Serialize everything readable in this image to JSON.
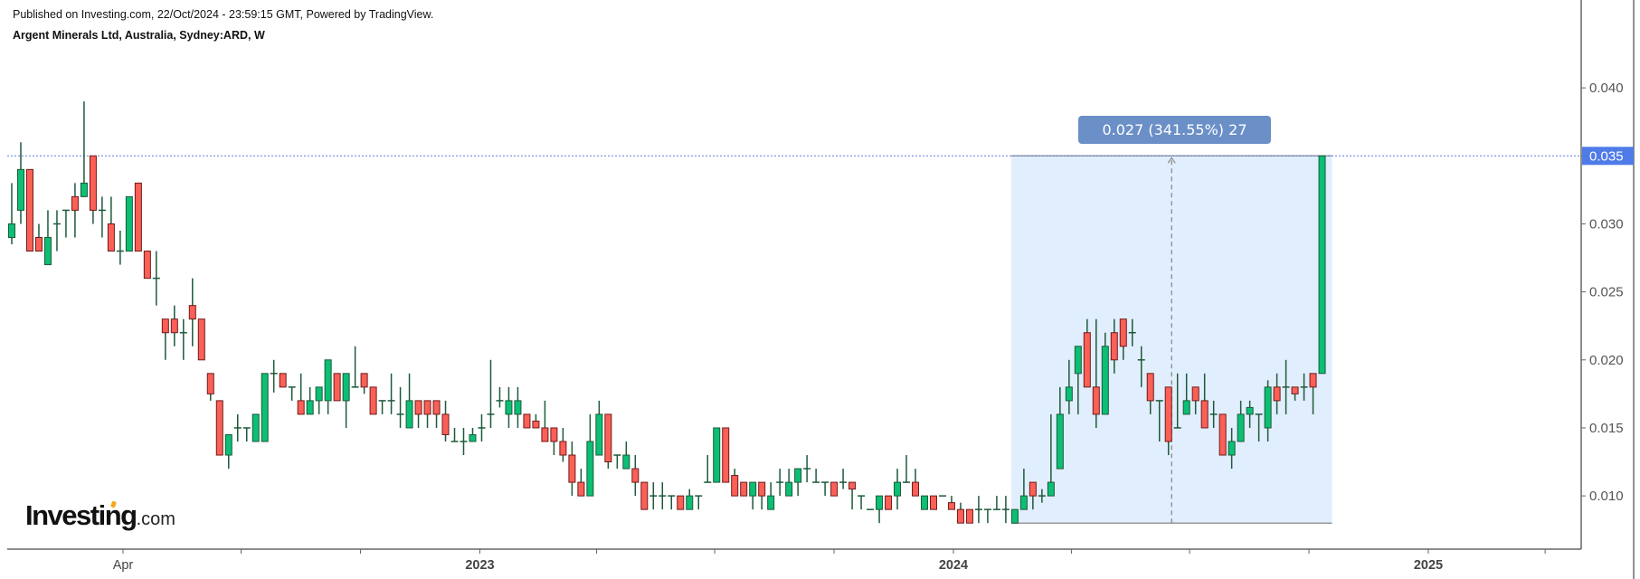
{
  "header": {
    "published": "Published on Investing.com, 22/Oct/2024 - 23:59:15 GMT, Powered by TradingView.",
    "title": "Argent Minerals Ltd, Australia, Sydney:ARD, W"
  },
  "logo": {
    "text": "Investing",
    "suffix": ".com"
  },
  "colors": {
    "up": "#0bbf74",
    "down": "#fb6057",
    "wick": "#1d5a3a",
    "measure_bg": "#e1eefd",
    "measure_label": "#6b8fc7",
    "price_label": "#4f7be8",
    "price_line": "#5a7de0"
  },
  "measure": {
    "label": "0.027 (341.55%) 27",
    "from_price": 0.008,
    "to_price": 0.035,
    "from_date": "2024-02-26",
    "to_date": "2024-10-21"
  },
  "chart_data": {
    "type": "candlestick",
    "interval": "W",
    "ylim": [
      0.006,
      0.043
    ],
    "y_ticks": [
      "0.010",
      "0.015",
      "0.020",
      "0.025",
      "0.030",
      "0.035",
      "0.040"
    ],
    "last_price": "0.035",
    "x_ticks": [
      {
        "date": "2022-04-01",
        "label": "Apr"
      },
      {
        "date": "2022-07-01",
        "label": ""
      },
      {
        "date": "2022-10-01",
        "label": ""
      },
      {
        "date": "2023-01-01",
        "label": "2023"
      },
      {
        "date": "2023-04-01",
        "label": ""
      },
      {
        "date": "2023-07-01",
        "label": ""
      },
      {
        "date": "2023-10-01",
        "label": ""
      },
      {
        "date": "2024-01-01",
        "label": "2024"
      },
      {
        "date": "2024-04-01",
        "label": ""
      },
      {
        "date": "2024-07-01",
        "label": ""
      },
      {
        "date": "2024-10-01",
        "label": ""
      },
      {
        "date": "2025-01-01",
        "label": "2025"
      },
      {
        "date": "2025-04-01",
        "label": ""
      }
    ],
    "candle_fields": [
      "date",
      "open",
      "high",
      "low",
      "close"
    ],
    "candles": [
      [
        "2022-01-10",
        0.029,
        0.033,
        0.0285,
        0.03
      ],
      [
        "2022-01-17",
        0.031,
        0.036,
        0.03,
        0.034
      ],
      [
        "2022-01-24",
        0.034,
        0.034,
        0.028,
        0.028
      ],
      [
        "2022-01-31",
        0.029,
        0.03,
        0.028,
        0.028
      ],
      [
        "2022-02-07",
        0.027,
        0.031,
        0.027,
        0.029
      ],
      [
        "2022-02-14",
        0.03,
        0.031,
        0.028,
        0.03
      ],
      [
        "2022-02-21",
        0.031,
        0.031,
        0.029,
        0.031
      ],
      [
        "2022-02-28",
        0.032,
        0.033,
        0.029,
        0.031
      ],
      [
        "2022-03-07",
        0.032,
        0.039,
        0.032,
        0.033
      ],
      [
        "2022-03-14",
        0.035,
        0.035,
        0.03,
        0.031
      ],
      [
        "2022-03-21",
        0.031,
        0.032,
        0.029,
        0.031
      ],
      [
        "2022-03-28",
        0.03,
        0.032,
        0.028,
        0.028
      ],
      [
        "2022-04-04",
        0.028,
        0.0295,
        0.027,
        0.028
      ],
      [
        "2022-04-11",
        0.028,
        0.032,
        0.028,
        0.032
      ],
      [
        "2022-04-18",
        0.033,
        0.033,
        0.028,
        0.028
      ],
      [
        "2022-04-25",
        0.028,
        0.028,
        0.026,
        0.026
      ],
      [
        "2022-05-02",
        0.026,
        0.028,
        0.024,
        0.026
      ],
      [
        "2022-05-09",
        0.023,
        0.023,
        0.02,
        0.022
      ],
      [
        "2022-05-16",
        0.023,
        0.024,
        0.021,
        0.022
      ],
      [
        "2022-05-23",
        0.022,
        0.023,
        0.02,
        0.022
      ],
      [
        "2022-05-30",
        0.024,
        0.026,
        0.021,
        0.023
      ],
      [
        "2022-06-06",
        0.023,
        0.023,
        0.02,
        0.02
      ],
      [
        "2022-06-13",
        0.019,
        0.019,
        0.017,
        0.0175
      ],
      [
        "2022-06-20",
        0.017,
        0.017,
        0.013,
        0.013
      ],
      [
        "2022-06-27",
        0.013,
        0.0145,
        0.012,
        0.0145
      ],
      [
        "2022-07-04",
        0.015,
        0.016,
        0.014,
        0.015
      ],
      [
        "2022-07-11",
        0.015,
        0.015,
        0.014,
        0.015
      ],
      [
        "2022-07-18",
        0.014,
        0.016,
        0.014,
        0.016
      ],
      [
        "2022-07-25",
        0.014,
        0.019,
        0.014,
        0.019
      ],
      [
        "2022-08-01",
        0.019,
        0.02,
        0.0176,
        0.019
      ],
      [
        "2022-08-08",
        0.019,
        0.019,
        0.018,
        0.018
      ],
      [
        "2022-08-15",
        0.018,
        0.018,
        0.017,
        0.018
      ],
      [
        "2022-08-22",
        0.017,
        0.019,
        0.016,
        0.016
      ],
      [
        "2022-08-29",
        0.016,
        0.018,
        0.016,
        0.017
      ],
      [
        "2022-09-05",
        0.017,
        0.018,
        0.016,
        0.018
      ],
      [
        "2022-09-12",
        0.017,
        0.02,
        0.016,
        0.02
      ],
      [
        "2022-09-19",
        0.019,
        0.019,
        0.017,
        0.017
      ],
      [
        "2022-09-26",
        0.017,
        0.019,
        0.015,
        0.019
      ],
      [
        "2022-10-03",
        0.018,
        0.021,
        0.018,
        0.018
      ],
      [
        "2022-10-10",
        0.019,
        0.019,
        0.0175,
        0.018
      ],
      [
        "2022-10-17",
        0.018,
        0.018,
        0.016,
        0.016
      ],
      [
        "2022-10-24",
        0.017,
        0.017,
        0.016,
        0.017
      ],
      [
        "2022-10-31",
        0.017,
        0.019,
        0.016,
        0.017
      ],
      [
        "2022-11-07",
        0.016,
        0.018,
        0.015,
        0.016
      ],
      [
        "2022-11-14",
        0.015,
        0.019,
        0.015,
        0.017
      ],
      [
        "2022-11-21",
        0.017,
        0.017,
        0.015,
        0.016
      ],
      [
        "2022-11-28",
        0.017,
        0.017,
        0.015,
        0.016
      ],
      [
        "2022-12-05",
        0.017,
        0.017,
        0.015,
        0.016
      ],
      [
        "2022-12-12",
        0.016,
        0.017,
        0.014,
        0.0145
      ],
      [
        "2022-12-19",
        0.014,
        0.015,
        0.014,
        0.014
      ],
      [
        "2022-12-26",
        0.014,
        0.015,
        0.013,
        0.014
      ],
      [
        "2023-01-02",
        0.014,
        0.015,
        0.014,
        0.0145
      ],
      [
        "2023-01-09",
        0.015,
        0.016,
        0.014,
        0.015
      ],
      [
        "2023-01-16",
        0.016,
        0.02,
        0.015,
        0.016
      ],
      [
        "2023-01-23",
        0.017,
        0.018,
        0.0165,
        0.017
      ],
      [
        "2023-01-30",
        0.016,
        0.018,
        0.015,
        0.017
      ],
      [
        "2023-02-06",
        0.016,
        0.018,
        0.015,
        0.017
      ],
      [
        "2023-02-13",
        0.016,
        0.016,
        0.015,
        0.015
      ],
      [
        "2023-02-20",
        0.0155,
        0.016,
        0.015,
        0.015
      ],
      [
        "2023-02-27",
        0.015,
        0.017,
        0.014,
        0.014
      ],
      [
        "2023-03-06",
        0.015,
        0.015,
        0.013,
        0.014
      ],
      [
        "2023-03-13",
        0.014,
        0.015,
        0.0125,
        0.013
      ],
      [
        "2023-03-20",
        0.013,
        0.014,
        0.01,
        0.011
      ],
      [
        "2023-03-27",
        0.011,
        0.012,
        0.01,
        0.01
      ],
      [
        "2023-04-03",
        0.01,
        0.016,
        0.01,
        0.014
      ],
      [
        "2023-04-10",
        0.013,
        0.017,
        0.013,
        0.016
      ],
      [
        "2023-04-17",
        0.016,
        0.016,
        0.012,
        0.0125
      ],
      [
        "2023-04-24",
        0.013,
        0.013,
        0.012,
        0.013
      ],
      [
        "2023-05-01",
        0.012,
        0.014,
        0.012,
        0.013
      ],
      [
        "2023-05-08",
        0.012,
        0.013,
        0.01,
        0.011
      ],
      [
        "2023-05-15",
        0.011,
        0.011,
        0.009,
        0.009
      ],
      [
        "2023-05-22",
        0.01,
        0.011,
        0.009,
        0.01
      ],
      [
        "2023-05-29",
        0.01,
        0.011,
        0.009,
        0.01
      ],
      [
        "2023-06-05",
        0.01,
        0.01,
        0.009,
        0.01
      ],
      [
        "2023-06-12",
        0.01,
        0.01,
        0.009,
        0.009
      ],
      [
        "2023-06-19",
        0.009,
        0.0105,
        0.009,
        0.01
      ],
      [
        "2023-06-26",
        0.01,
        0.01,
        0.009,
        0.01
      ],
      [
        "2023-07-03",
        0.011,
        0.013,
        0.011,
        0.011
      ],
      [
        "2023-07-10",
        0.011,
        0.015,
        0.011,
        0.015
      ],
      [
        "2023-07-17",
        0.015,
        0.015,
        0.011,
        0.011
      ],
      [
        "2023-07-24",
        0.0115,
        0.012,
        0.01,
        0.01
      ],
      [
        "2023-07-31",
        0.011,
        0.011,
        0.01,
        0.01
      ],
      [
        "2023-08-07",
        0.01,
        0.011,
        0.009,
        0.011
      ],
      [
        "2023-08-14",
        0.011,
        0.011,
        0.009,
        0.01
      ],
      [
        "2023-08-21",
        0.009,
        0.011,
        0.009,
        0.01
      ],
      [
        "2023-08-28",
        0.011,
        0.012,
        0.01,
        0.011
      ],
      [
        "2023-09-04",
        0.01,
        0.012,
        0.01,
        0.011
      ],
      [
        "2023-09-11",
        0.011,
        0.012,
        0.01,
        0.012
      ],
      [
        "2023-09-18",
        0.012,
        0.013,
        0.011,
        0.012
      ],
      [
        "2023-09-25",
        0.011,
        0.012,
        0.011,
        0.011
      ],
      [
        "2023-10-02",
        0.011,
        0.011,
        0.01,
        0.011
      ],
      [
        "2023-10-09",
        0.011,
        0.011,
        0.01,
        0.01
      ],
      [
        "2023-10-16",
        0.011,
        0.012,
        0.0105,
        0.011
      ],
      [
        "2023-10-23",
        0.011,
        0.011,
        0.009,
        0.0105
      ],
      [
        "2023-10-30",
        0.01,
        0.01,
        0.009,
        0.01
      ],
      [
        "2023-11-06",
        0.009,
        0.009,
        0.009,
        0.009
      ],
      [
        "2023-11-13",
        0.009,
        0.01,
        0.008,
        0.01
      ],
      [
        "2023-11-20",
        0.01,
        0.01,
        0.009,
        0.009
      ],
      [
        "2023-11-27",
        0.01,
        0.012,
        0.009,
        0.011
      ],
      [
        "2023-12-04",
        0.011,
        0.013,
        0.011,
        0.011
      ],
      [
        "2023-12-11",
        0.011,
        0.012,
        0.01,
        0.01
      ],
      [
        "2023-12-18",
        0.009,
        0.01,
        0.009,
        0.01
      ],
      [
        "2023-12-25",
        0.01,
        0.01,
        0.009,
        0.009
      ],
      [
        "2024-01-01",
        0.01,
        0.01,
        0.01,
        0.01
      ],
      [
        "2024-01-08",
        0.0095,
        0.01,
        0.009,
        0.009
      ],
      [
        "2024-01-15",
        0.009,
        0.0095,
        0.008,
        0.008
      ],
      [
        "2024-01-22",
        0.009,
        0.009,
        0.008,
        0.008
      ],
      [
        "2024-01-29",
        0.009,
        0.01,
        0.008,
        0.009
      ],
      [
        "2024-02-05",
        0.009,
        0.009,
        0.008,
        0.009
      ],
      [
        "2024-02-12",
        0.009,
        0.01,
        0.009,
        0.009
      ],
      [
        "2024-02-19",
        0.009,
        0.01,
        0.008,
        0.009
      ],
      [
        "2024-02-26",
        0.008,
        0.009,
        0.008,
        0.009
      ],
      [
        "2024-03-04",
        0.009,
        0.012,
        0.009,
        0.01
      ],
      [
        "2024-03-11",
        0.011,
        0.011,
        0.009,
        0.01
      ],
      [
        "2024-03-18",
        0.01,
        0.0105,
        0.0095,
        0.01
      ],
      [
        "2024-03-25",
        0.01,
        0.016,
        0.01,
        0.011
      ],
      [
        "2024-04-01",
        0.012,
        0.018,
        0.012,
        0.016
      ],
      [
        "2024-04-08",
        0.017,
        0.02,
        0.016,
        0.018
      ],
      [
        "2024-04-15",
        0.019,
        0.021,
        0.016,
        0.021
      ],
      [
        "2024-04-22",
        0.022,
        0.023,
        0.018,
        0.018
      ],
      [
        "2024-04-29",
        0.018,
        0.023,
        0.015,
        0.016
      ],
      [
        "2024-05-06",
        0.016,
        0.022,
        0.016,
        0.021
      ],
      [
        "2024-05-13",
        0.022,
        0.023,
        0.019,
        0.02
      ],
      [
        "2024-05-20",
        0.023,
        0.023,
        0.02,
        0.021
      ],
      [
        "2024-05-27",
        0.022,
        0.023,
        0.021,
        0.022
      ],
      [
        "2024-06-03",
        0.02,
        0.021,
        0.018,
        0.02
      ],
      [
        "2024-06-10",
        0.019,
        0.019,
        0.016,
        0.017
      ],
      [
        "2024-06-17",
        0.017,
        0.017,
        0.014,
        0.017
      ],
      [
        "2024-06-24",
        0.018,
        0.018,
        0.013,
        0.014
      ],
      [
        "2024-07-01",
        0.015,
        0.019,
        0.015,
        0.015
      ],
      [
        "2024-07-08",
        0.016,
        0.019,
        0.016,
        0.017
      ],
      [
        "2024-07-15",
        0.018,
        0.018,
        0.016,
        0.017
      ],
      [
        "2024-07-22",
        0.017,
        0.019,
        0.015,
        0.015
      ],
      [
        "2024-07-29",
        0.016,
        0.017,
        0.015,
        0.016
      ],
      [
        "2024-08-05",
        0.016,
        0.016,
        0.013,
        0.013
      ],
      [
        "2024-08-12",
        0.013,
        0.015,
        0.012,
        0.014
      ],
      [
        "2024-08-19",
        0.014,
        0.017,
        0.014,
        0.016
      ],
      [
        "2024-08-26",
        0.016,
        0.017,
        0.015,
        0.0165
      ],
      [
        "2024-09-02",
        0.016,
        0.016,
        0.014,
        0.016
      ],
      [
        "2024-09-09",
        0.015,
        0.0185,
        0.014,
        0.018
      ],
      [
        "2024-09-16",
        0.018,
        0.019,
        0.016,
        0.017
      ],
      [
        "2024-09-23",
        0.018,
        0.02,
        0.016,
        0.018
      ],
      [
        "2024-09-30",
        0.018,
        0.018,
        0.017,
        0.0175
      ],
      [
        "2024-10-07",
        0.018,
        0.019,
        0.017,
        0.018
      ],
      [
        "2024-10-14",
        0.019,
        0.019,
        0.016,
        0.018
      ],
      [
        "2024-10-21",
        0.019,
        0.035,
        0.019,
        0.035
      ]
    ]
  }
}
